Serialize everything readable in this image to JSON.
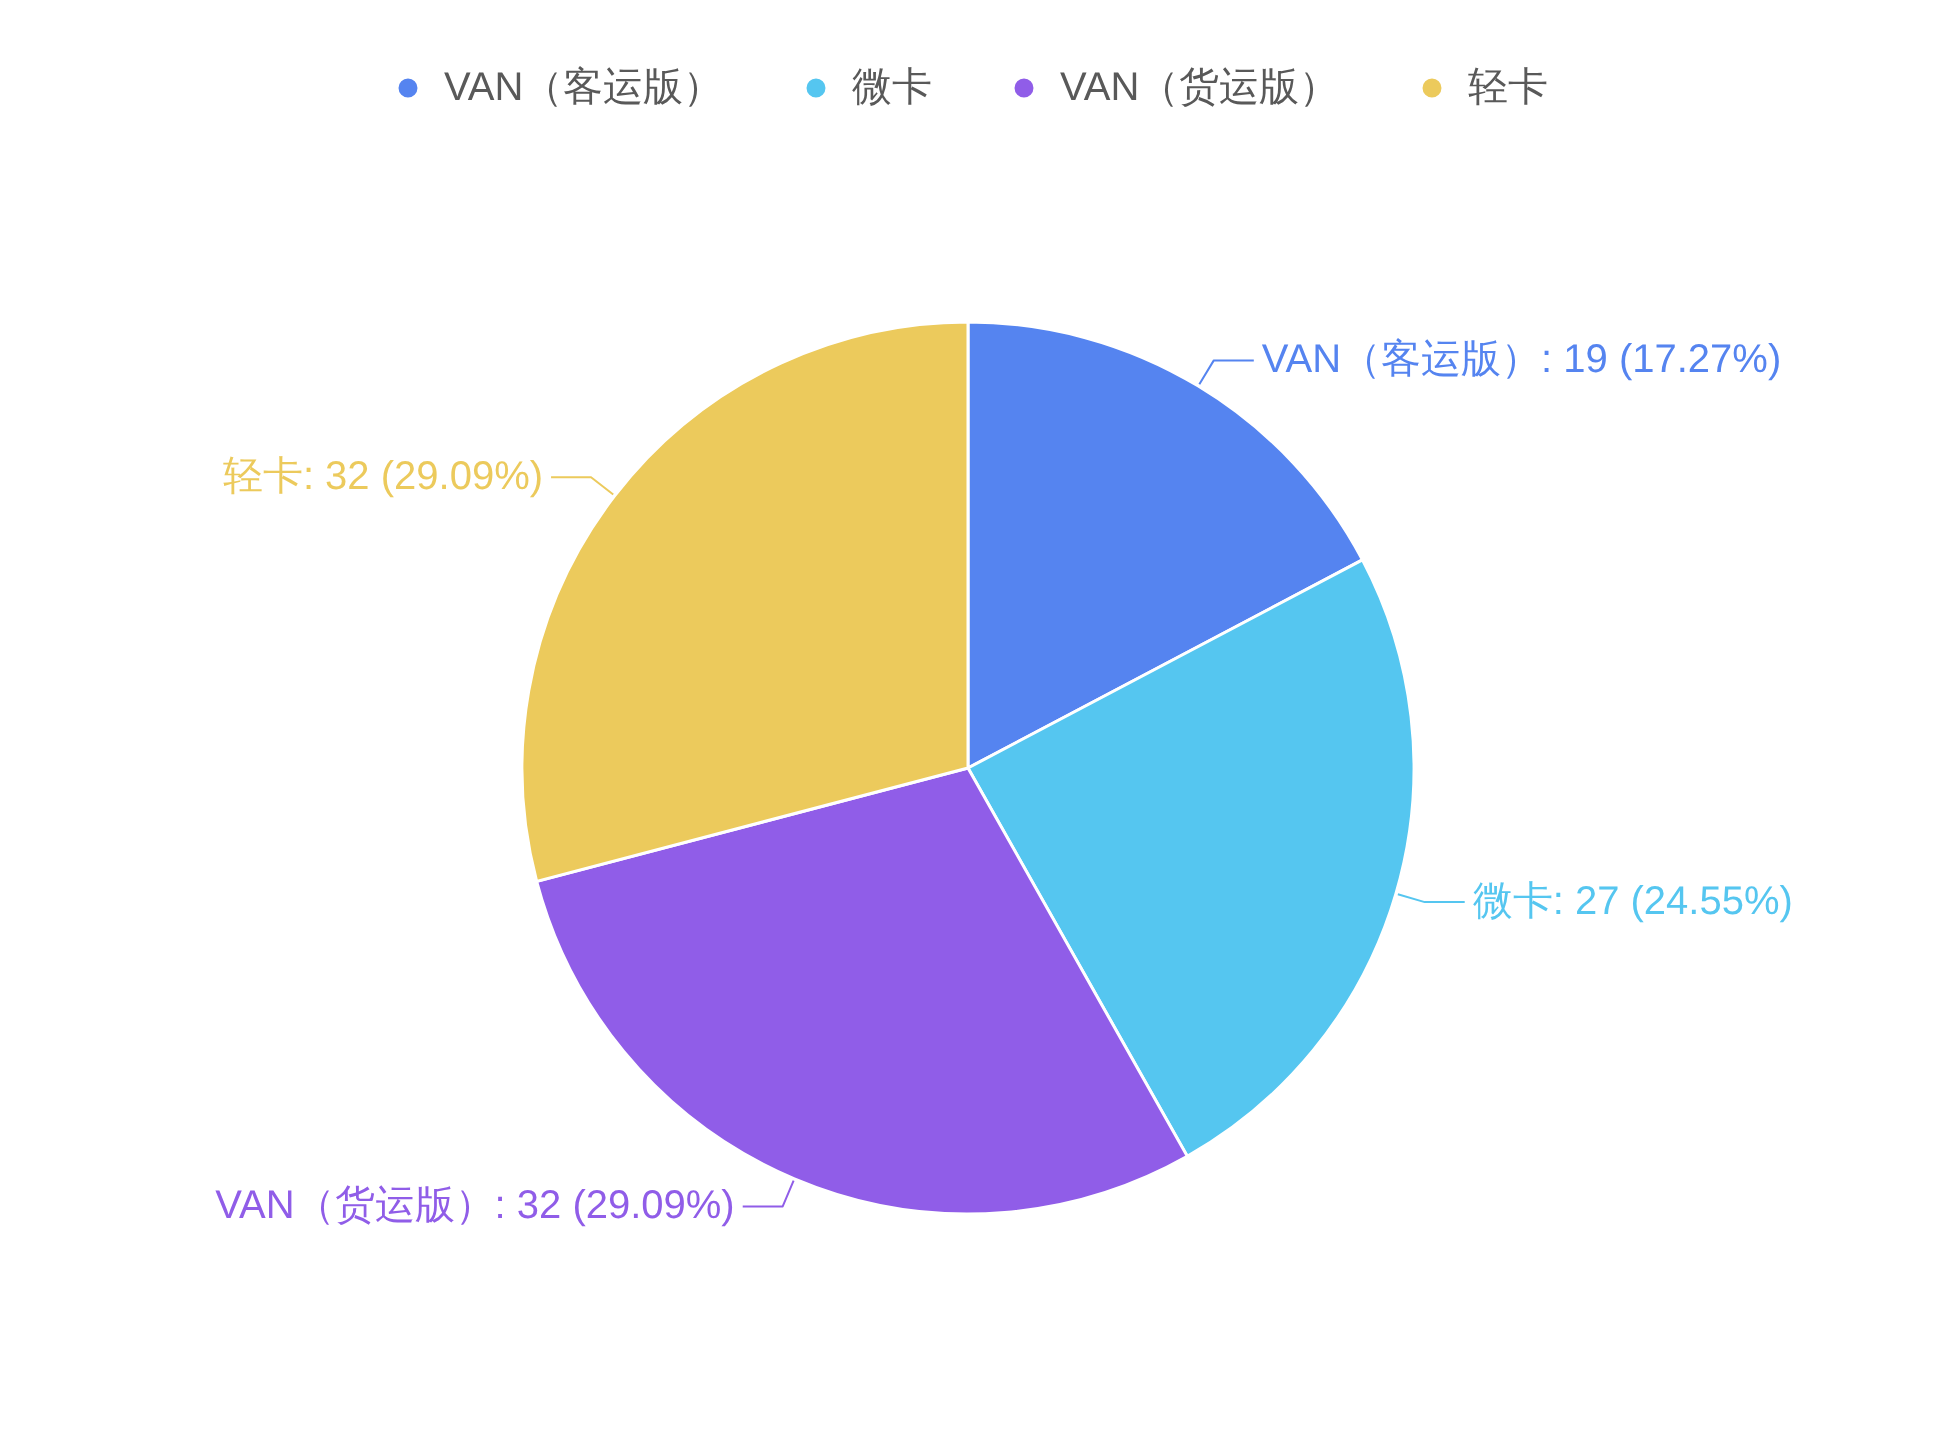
{
  "chart_data": {
    "type": "pie",
    "categories": [
      "VAN（客运版）",
      "微卡",
      "VAN（货运版）",
      "轻卡"
    ],
    "values": [
      19,
      27,
      32,
      32
    ],
    "colors": [
      "#5584f0",
      "#55c6f0",
      "#905de8",
      "#ecca5c"
    ],
    "value_labels": [
      "VAN（客运版）: 19 (17.27%)",
      "微卡: 27 (24.55%)",
      "VAN（货运版）: 32 (29.09%)",
      "轻卡: 32 (29.09%)"
    ],
    "legend": "top"
  }
}
